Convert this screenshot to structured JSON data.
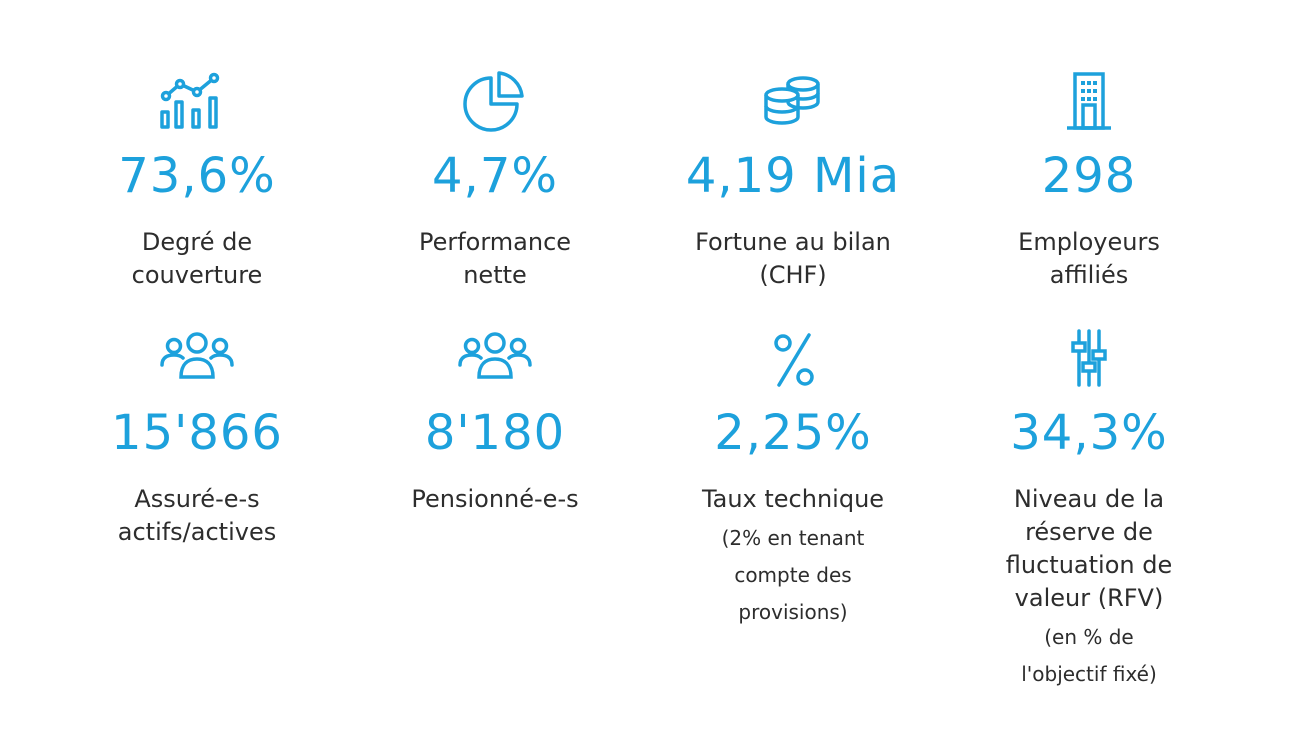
{
  "accent_color": "#1da1dc",
  "text_color": "#2d2d2d",
  "stats": [
    {
      "icon": "chart-icon",
      "value": "73,6%",
      "label": "Degré de\ncouverture"
    },
    {
      "icon": "pie-chart-icon",
      "value": "4,7%",
      "label": "Performance\nnette"
    },
    {
      "icon": "coins-icon",
      "value": "4,19 Mia",
      "label": "Fortune au bilan\n(CHF)"
    },
    {
      "icon": "building-icon",
      "value": "298",
      "label": "Employeurs\naffiliés"
    },
    {
      "icon": "people-icon",
      "value": "15'866",
      "label": "Assuré-e-s\nactifs/actives"
    },
    {
      "icon": "people-icon",
      "value": "8'180",
      "label": "Pensionné-e-s"
    },
    {
      "icon": "percent-icon",
      "value": "2,25%",
      "label": "Taux technique",
      "note": "(2% en tenant\ncompte des\nprovisions)"
    },
    {
      "icon": "sliders-icon",
      "value": "34,3%",
      "label": "Niveau de la\nréserve de\nfluctuation de\nvaleur (RFV)",
      "note": "(en % de\nl'objectif fixé)"
    }
  ]
}
